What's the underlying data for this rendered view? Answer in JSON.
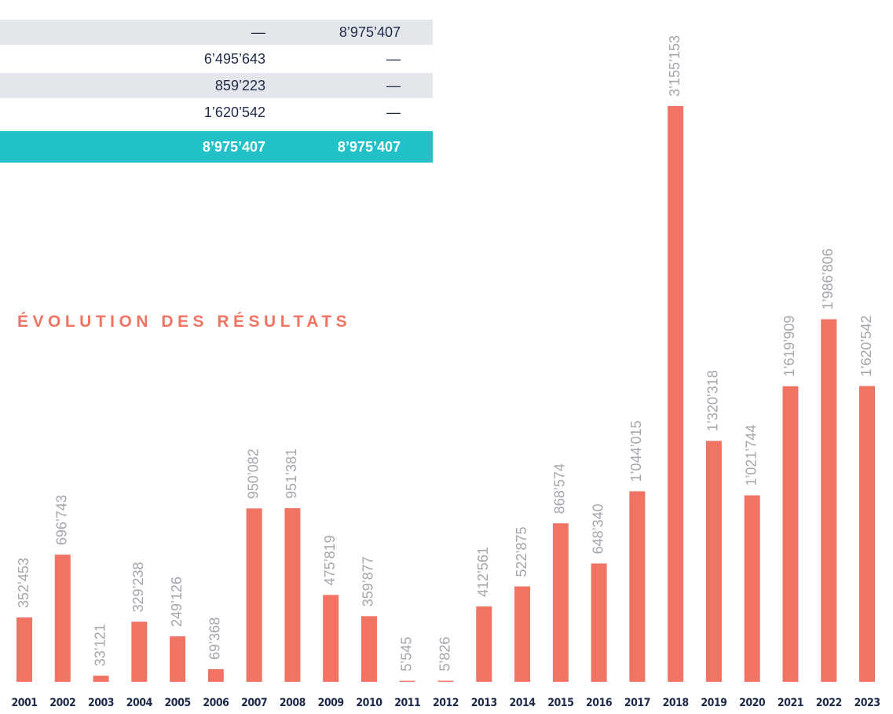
{
  "table": {
    "rows": [
      [
        "—",
        "8’975’407"
      ],
      [
        "6’495’643",
        "—"
      ],
      [
        "859’223",
        "—"
      ],
      [
        "1’620’542",
        "—"
      ]
    ],
    "total": [
      "8’975’407",
      "8’975’407"
    ]
  },
  "chart_data": {
    "type": "bar",
    "title": "ÉVOLUTION DES RÉSULTATS",
    "color": "#f07363",
    "categories": [
      "2001",
      "2002",
      "2003",
      "2004",
      "2005",
      "2006",
      "2007",
      "2008",
      "2009",
      "2010",
      "2011",
      "2012",
      "2013",
      "2014",
      "2015",
      "2016",
      "2017",
      "2018",
      "2019",
      "2020",
      "2021",
      "2022",
      "2023"
    ],
    "values": [
      352453,
      696743,
      33121,
      329238,
      249126,
      69368,
      950082,
      951381,
      475819,
      359877,
      5545,
      5826,
      412561,
      522875,
      868574,
      648340,
      1044015,
      3155153,
      1320318,
      1021744,
      1619909,
      1986806,
      1620542
    ],
    "value_labels": [
      "352’453",
      "696’743",
      "33’121",
      "329’238",
      "249’126",
      "69’368",
      "950’082",
      "951’381",
      "475’819",
      "359’877",
      "5’545",
      "5’826",
      "412’561",
      "522’875",
      "868’574",
      "648’340",
      "1’044’015",
      "3’155’153",
      "1’320’318",
      "1’021’744",
      "1’619’909",
      "1’986’806",
      "1’620’542"
    ]
  }
}
